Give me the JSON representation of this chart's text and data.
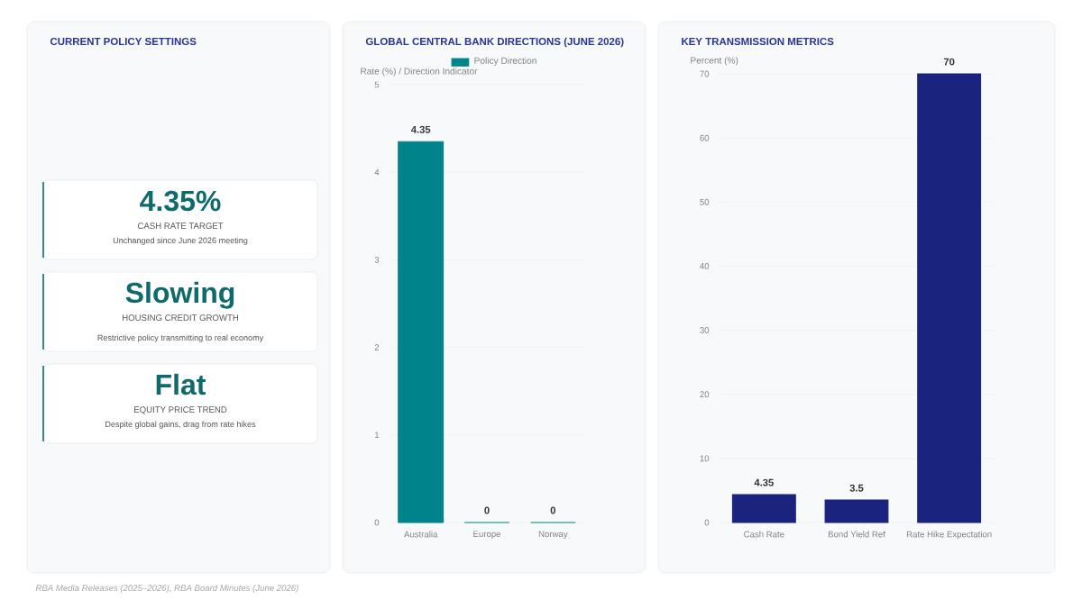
{
  "chart_data": [
    {
      "type": "other",
      "title": "CURRENT POLICY SETTINGS",
      "annotations": [
        "4.35%",
        "CASH RATE TARGET",
        "Unchanged since June 2026 meeting",
        "Slowing",
        "HOUSING CREDIT GROWTH",
        "Restrictive policy transmitting to real economy",
        "Flat",
        "EQUITY PRICE TREND",
        "Despite global gains, drag from rate hikes",
        "RBA Media Releases (2025–2026), RBA Board Minutes (June 2026)"
      ]
    },
    {
      "type": "bar",
      "title": "GLOBAL CENTRAL BANK DIRECTIONS (JUNE 2026)",
      "ylabel": "Rate (%) / Direction Indicator",
      "categories": [
        "Australia",
        "Europe",
        "Norway"
      ],
      "series": [
        {
          "name": "Policy Direction",
          "color": "#00838a",
          "values": [
            4.35,
            0,
            0
          ]
        }
      ],
      "ylim": [
        0,
        5
      ],
      "yticks": [
        0,
        1,
        2,
        3,
        4,
        5
      ],
      "grid": "y",
      "legend": "top",
      "data_labels": true
    },
    {
      "type": "bar",
      "title": "KEY TRANSMISSION METRICS",
      "ylabel": "Percent (%)",
      "categories": [
        "Cash Rate",
        "Bond Yield Ref",
        "Rate Hike Expectation"
      ],
      "series": [
        {
          "color": "#1a237e",
          "values": [
            4.35,
            3.5,
            70
          ]
        }
      ],
      "ylim": [
        0,
        70
      ],
      "yticks": [
        0,
        10,
        20,
        30,
        40,
        50,
        60,
        70
      ],
      "grid": "y",
      "data_labels": true
    }
  ]
}
